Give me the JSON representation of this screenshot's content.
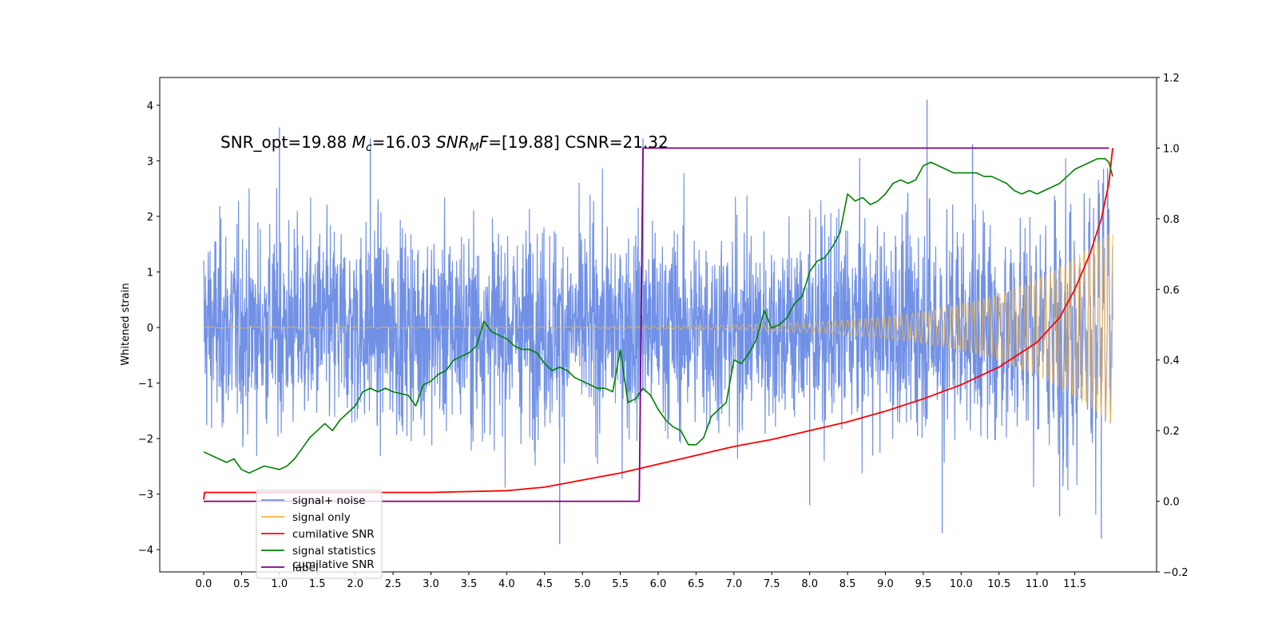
{
  "chart_data": {
    "type": "line",
    "title": "",
    "annotation": {
      "parts": [
        "SNR_opt=19.88 ",
        "M",
        "c",
        "=16.03  ",
        "SNR",
        "M",
        "F",
        "=[19.88] CSNR=21.32"
      ]
    },
    "x_axis": {
      "range": [
        -0.58,
        12.58
      ],
      "ticks": [
        "0.0",
        "0.5",
        "1.0",
        "1.5",
        "2.0",
        "2.5",
        "3.0",
        "3.5",
        "4.0",
        "4.5",
        "5.0",
        "5.5",
        "6.0",
        "6.5",
        "7.0",
        "7.5",
        "8.0",
        "8.5",
        "9.0",
        "9.5",
        "10.0",
        "10.5",
        "11.0",
        "11.5"
      ],
      "label": ""
    },
    "y_left": {
      "label": "Whitened strain",
      "range": [
        -4.4,
        4.5
      ],
      "ticks": [
        "4",
        "3",
        "2",
        "1",
        "0",
        "−1",
        "−2",
        "−3",
        "−4"
      ]
    },
    "y_right": {
      "label": "",
      "range": [
        -0.2,
        1.2
      ],
      "ticks": [
        "1.2",
        "1.0",
        "0.8",
        "0.6",
        "0.4",
        "0.2",
        "0.0",
        "−0.2"
      ]
    },
    "series": [
      {
        "name": "signal+ noise",
        "axis": "left",
        "color": "#7191e6",
        "description": "noisy whitened strain, roughly ±2 with spikes to about ±4 across 0–12 s",
        "spikes": [
          [
            1.0,
            3.6
          ],
          [
            2.2,
            3.4
          ],
          [
            4.7,
            -3.9
          ],
          [
            5.8,
            3.4
          ],
          [
            8.0,
            -3.2
          ],
          [
            9.55,
            4.1
          ],
          [
            9.75,
            -3.7
          ],
          [
            10.15,
            3.3
          ],
          [
            11.3,
            -3.4
          ],
          [
            11.85,
            -3.8
          ]
        ]
      },
      {
        "name": "signal only",
        "axis": "left",
        "color": "#f5b547",
        "description": "chirp oscillation with amplitude growing to about 1.4 at 12 s"
      },
      {
        "name": "cumilative SNR",
        "axis": "right",
        "color": "#ff0000",
        "x": [
          0.0,
          0.01,
          1.0,
          2.0,
          3.0,
          4.0,
          4.5,
          5.0,
          5.5,
          6.0,
          6.5,
          7.0,
          7.5,
          8.0,
          8.5,
          9.0,
          9.5,
          10.0,
          10.5,
          11.0,
          11.3,
          11.5,
          11.7,
          11.85,
          11.95,
          12.0
        ],
        "y": [
          0.005,
          0.025,
          0.025,
          0.025,
          0.025,
          0.03,
          0.04,
          0.06,
          0.08,
          0.105,
          0.13,
          0.155,
          0.175,
          0.2,
          0.225,
          0.255,
          0.29,
          0.33,
          0.38,
          0.45,
          0.52,
          0.6,
          0.7,
          0.8,
          0.9,
          1.0
        ]
      },
      {
        "name": "signal statistics",
        "axis": "right",
        "color": "#008000",
        "x": [
          0.0,
          0.1,
          0.2,
          0.3,
          0.4,
          0.5,
          0.6,
          0.7,
          0.8,
          0.9,
          1.0,
          1.1,
          1.2,
          1.3,
          1.4,
          1.5,
          1.6,
          1.7,
          1.8,
          1.9,
          2.0,
          2.1,
          2.2,
          2.3,
          2.4,
          2.5,
          2.6,
          2.7,
          2.8,
          2.9,
          3.0,
          3.1,
          3.2,
          3.3,
          3.4,
          3.5,
          3.6,
          3.7,
          3.8,
          3.9,
          4.0,
          4.1,
          4.2,
          4.3,
          4.4,
          4.5,
          4.6,
          4.7,
          4.8,
          4.9,
          5.0,
          5.1,
          5.2,
          5.3,
          5.4,
          5.5,
          5.6,
          5.7,
          5.8,
          5.9,
          6.0,
          6.1,
          6.2,
          6.3,
          6.4,
          6.5,
          6.6,
          6.7,
          6.8,
          6.9,
          7.0,
          7.1,
          7.2,
          7.3,
          7.4,
          7.5,
          7.6,
          7.7,
          7.8,
          7.9,
          8.0,
          8.1,
          8.2,
          8.3,
          8.4,
          8.5,
          8.6,
          8.7,
          8.8,
          8.9,
          9.0,
          9.1,
          9.2,
          9.3,
          9.4,
          9.5,
          9.6,
          9.7,
          9.8,
          9.9,
          10.0,
          10.1,
          10.2,
          10.3,
          10.4,
          10.5,
          10.6,
          10.7,
          10.8,
          10.9,
          11.0,
          11.1,
          11.2,
          11.3,
          11.4,
          11.5,
          11.6,
          11.7,
          11.8,
          11.9,
          11.95,
          12.0
        ],
        "y": [
          0.14,
          0.13,
          0.12,
          0.11,
          0.12,
          0.09,
          0.08,
          0.09,
          0.1,
          0.095,
          0.09,
          0.1,
          0.12,
          0.15,
          0.18,
          0.2,
          0.22,
          0.2,
          0.23,
          0.25,
          0.27,
          0.31,
          0.32,
          0.31,
          0.32,
          0.31,
          0.305,
          0.3,
          0.27,
          0.33,
          0.34,
          0.36,
          0.37,
          0.4,
          0.41,
          0.42,
          0.44,
          0.51,
          0.48,
          0.47,
          0.46,
          0.44,
          0.43,
          0.43,
          0.42,
          0.39,
          0.37,
          0.38,
          0.37,
          0.35,
          0.34,
          0.33,
          0.32,
          0.32,
          0.31,
          0.43,
          0.28,
          0.29,
          0.32,
          0.3,
          0.26,
          0.23,
          0.21,
          0.2,
          0.16,
          0.16,
          0.18,
          0.24,
          0.26,
          0.28,
          0.4,
          0.39,
          0.42,
          0.46,
          0.54,
          0.49,
          0.5,
          0.52,
          0.56,
          0.58,
          0.65,
          0.68,
          0.69,
          0.72,
          0.76,
          0.87,
          0.85,
          0.86,
          0.84,
          0.85,
          0.87,
          0.9,
          0.91,
          0.9,
          0.91,
          0.95,
          0.96,
          0.95,
          0.94,
          0.93,
          0.93,
          0.93,
          0.93,
          0.92,
          0.92,
          0.91,
          0.9,
          0.88,
          0.87,
          0.88,
          0.87,
          0.88,
          0.89,
          0.9,
          0.92,
          0.94,
          0.95,
          0.96,
          0.97,
          0.97,
          0.96,
          0.92
        ]
      },
      {
        "name": "label",
        "axis": "right",
        "color": "#800080",
        "x": [
          0.0,
          5.75,
          5.8,
          11.95
        ],
        "y": [
          0.0,
          0.0,
          1.0,
          1.0
        ]
      }
    ],
    "legend": {
      "placement": "lower-left",
      "entries": [
        "signal+ noise",
        "signal only",
        "cumilative SNR",
        "signal statistics",
        "label"
      ],
      "ghost_text": "cumilative SNR"
    }
  }
}
